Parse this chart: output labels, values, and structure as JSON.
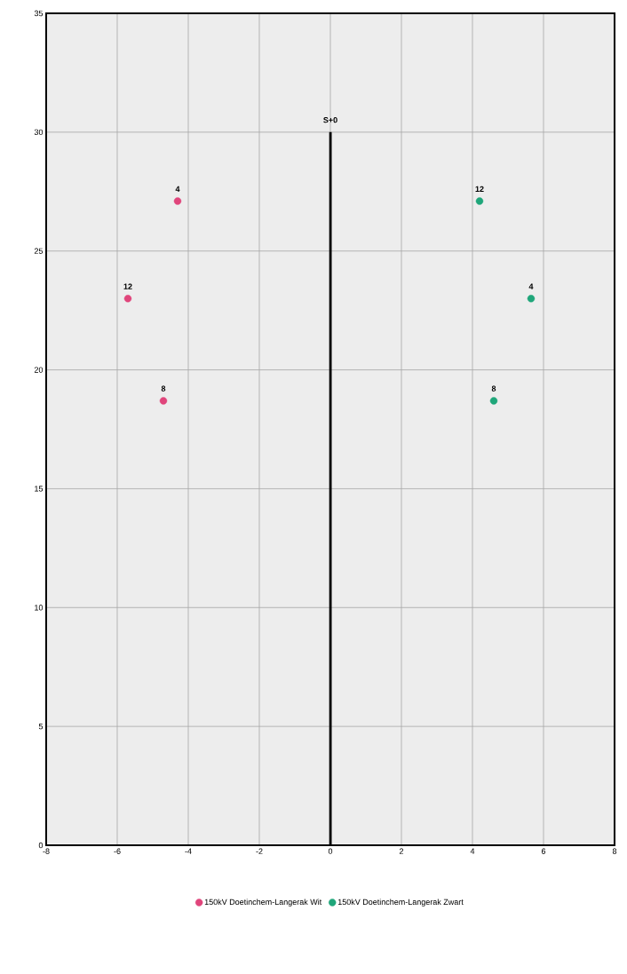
{
  "chart_data": {
    "type": "scatter",
    "series": [
      {
        "name": "150kV Doetinchem-Langerak Wit",
        "color": "#e0457b",
        "marker": "circle",
        "x": [
          -4.3,
          -5.7,
          -4.7
        ],
        "values": [
          27.1,
          23.0,
          18.7
        ]
      },
      {
        "name": "150kV Doetinchem-Langerak Zwart",
        "color": "#1fa67a",
        "marker": "circle",
        "x": [
          4.2,
          5.65,
          4.6
        ],
        "values": [
          27.1,
          23.0,
          18.7
        ]
      },
      {
        "type": "line",
        "color": "#000000",
        "marker": "none",
        "x": [
          0,
          0
        ],
        "values": [
          0,
          30
        ]
      }
    ],
    "annotations": [
      {
        "text": "4",
        "x": -4.3,
        "y": 27.1
      },
      {
        "text": "12",
        "x": -5.7,
        "y": 23.0
      },
      {
        "text": "8",
        "x": -4.7,
        "y": 18.7
      },
      {
        "text": "12",
        "x": 4.2,
        "y": 27.1
      },
      {
        "text": "4",
        "x": 5.65,
        "y": 23.0
      },
      {
        "text": "8",
        "x": 4.6,
        "y": 18.7
      },
      {
        "text": "S+0",
        "x": 0,
        "y": 30
      }
    ],
    "xlim": [
      -8,
      8
    ],
    "ylim": [
      0,
      35
    ],
    "xticks": [
      -8,
      -6,
      -4,
      -2,
      0,
      2,
      4,
      6,
      8
    ],
    "yticks": [
      0,
      5,
      10,
      15,
      20,
      25,
      30,
      35
    ],
    "grid": true,
    "legend": "bottom"
  }
}
